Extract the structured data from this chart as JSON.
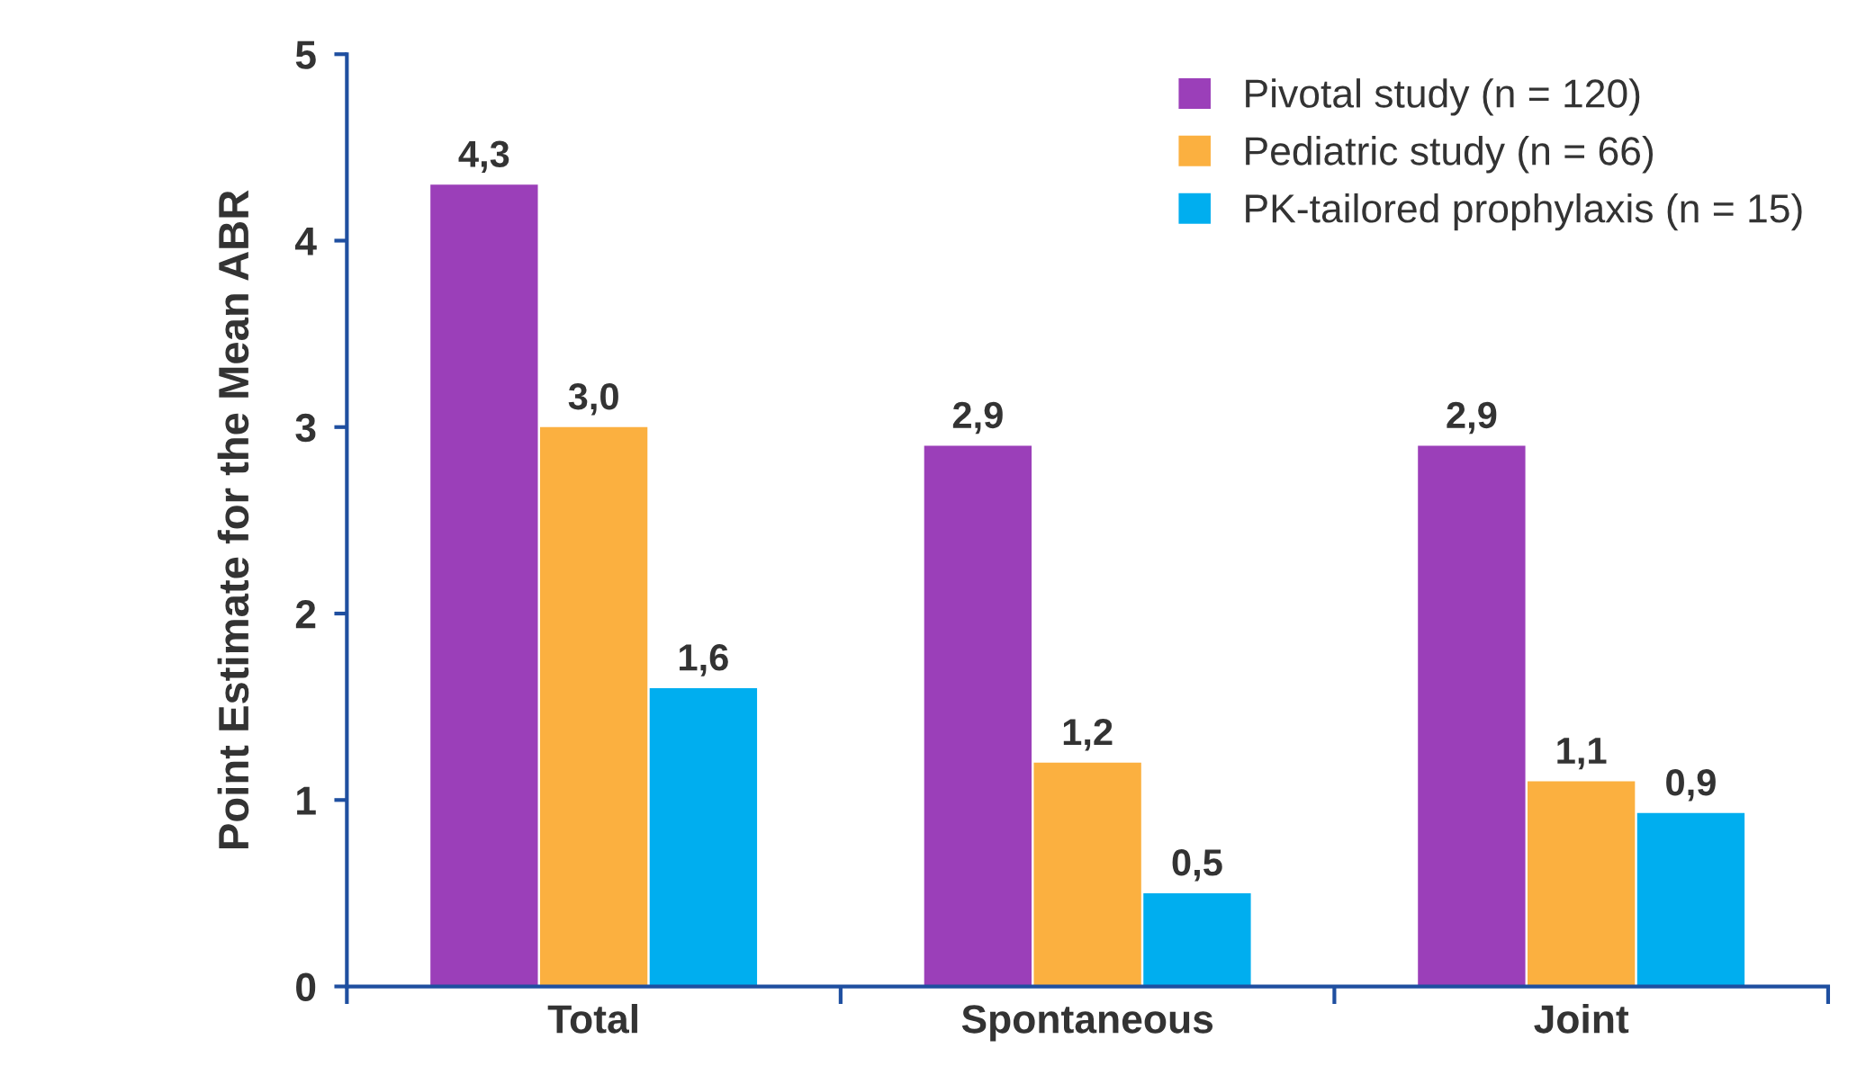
{
  "chart_data": {
    "type": "bar",
    "ylabel": "Point Estimate for the Mean ABR",
    "categories": [
      "Total",
      "Spontaneous",
      "Joint"
    ],
    "series": [
      {
        "name": "Pivotal study (n = 120)",
        "color": "#9b3fb9",
        "values": [
          4.3,
          2.9,
          2.9
        ],
        "value_labels": [
          "4,3",
          "2,9",
          "2,9"
        ]
      },
      {
        "name": "Pediatric study (n = 66)",
        "color": "#fbb040",
        "values": [
          3.0,
          1.2,
          1.1
        ],
        "value_labels": [
          "3,0",
          "1,2",
          "1,1"
        ]
      },
      {
        "name": "PK-tailored prophylaxis (n = 15)",
        "color": "#00aeef",
        "values": [
          1.6,
          0.5,
          0.93
        ],
        "value_labels": [
          "1,6",
          "0,5",
          "0,9"
        ]
      }
    ],
    "ylim": [
      0,
      5
    ],
    "yticks": [
      0,
      1,
      2,
      3,
      4,
      5
    ],
    "grid": false,
    "legend": "top right"
  }
}
